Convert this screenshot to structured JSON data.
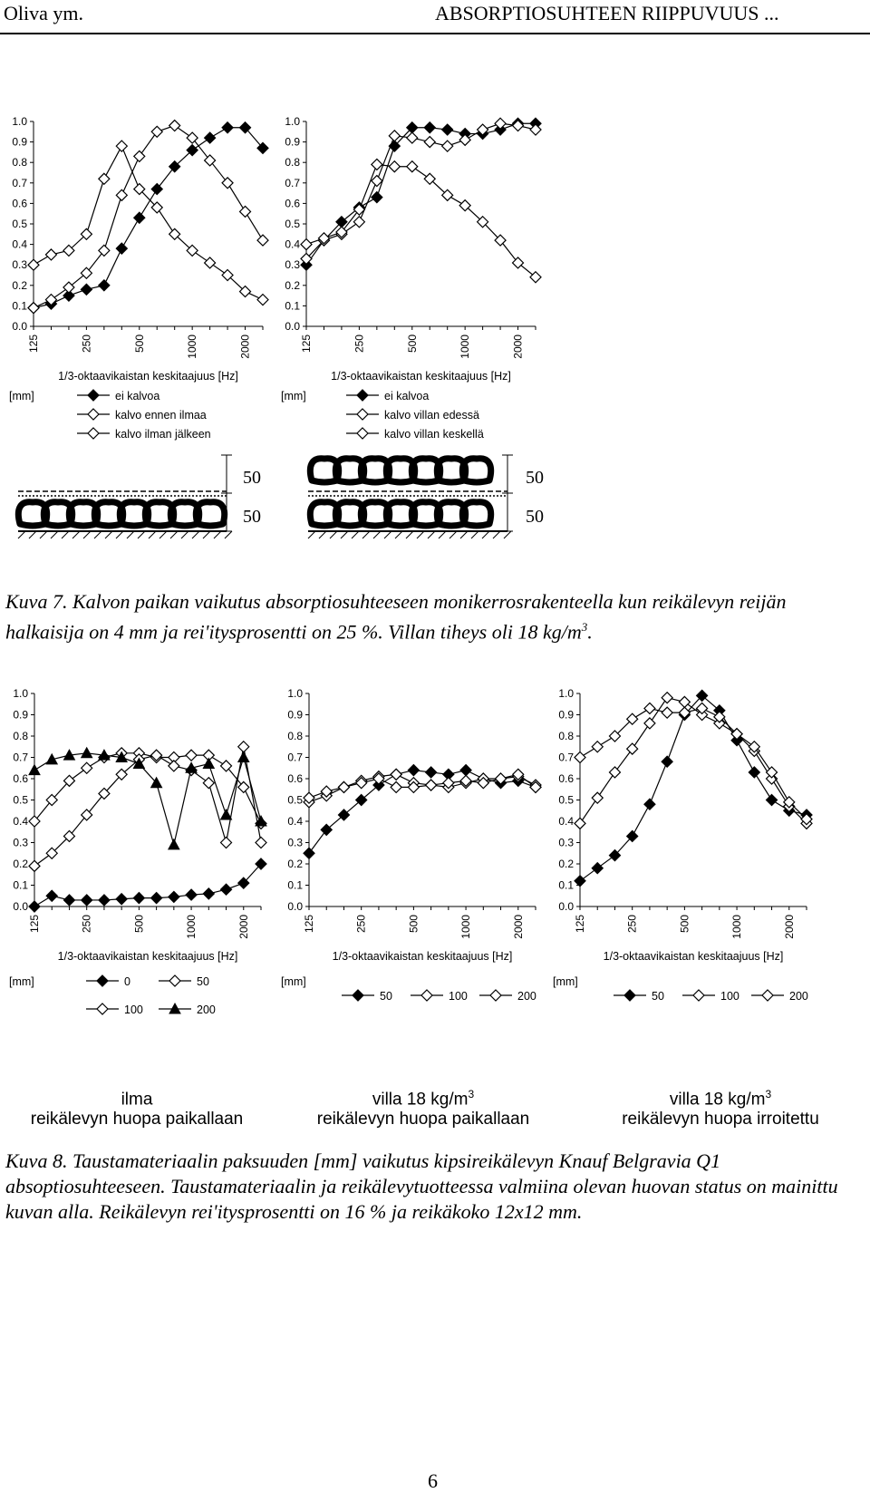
{
  "header": {
    "left": "Oliva ym.",
    "right": "ABSORPTIOSUHTEEN RIIPPUVUUS ..."
  },
  "caption7": {
    "text": "Kuva 7. Kalvon paikan vaikutus absorptiosuhteeseen monikerrosrakenteella kun reikälevyn reijän halkaisija on 4 mm ja rei'itysprosentti on 25 %. Villan tiheys oli 18 kg/m",
    "sup": "3",
    "end": "."
  },
  "caption8": {
    "text": "Kuva 8. Taustamateriaalin paksuuden [mm] vaikutus kipsireikälevyn Knauf Belgravia Q1 absoptiosuhteeseen. Taustamateriaalin ja reikälevytuotteessa valmiina olevan huovan status on mainittu kuvan alla. Reikälevyn rei'itysprosentti on 16 % ja reikäkoko 12x12 mm."
  },
  "page_number": "6",
  "diagrams": {
    "left": {
      "dim_top": "50",
      "dim_bottom": "50"
    },
    "right": {
      "dim_top": "50",
      "dim_bottom": "50"
    }
  },
  "sublabels": [
    {
      "line1": "ilma",
      "line1_sup": "",
      "line2": "reikälevyn huopa paikallaan"
    },
    {
      "line1": "villa 18 kg/m",
      "line1_sup": "3",
      "line2": "reikälevyn huopa paikallaan"
    },
    {
      "line1": "villa 18 kg/m",
      "line1_sup": "3",
      "line2": "reikälevyn huopa irroitettu"
    }
  ],
  "chart_data": [
    {
      "type": "line",
      "categories": [
        "125",
        "160",
        "200",
        "250",
        "315",
        "400",
        "500",
        "630",
        "800",
        "1000",
        "1250",
        "1600",
        "2000",
        "2500"
      ],
      "tick_labels": [
        "125",
        "250",
        "500",
        "1000",
        "2000"
      ],
      "xlabel": "1/3-oktaavikaistan keskitaajuus [Hz]",
      "ylim": [
        0,
        1.0
      ],
      "yticks": [
        "1.0",
        "0.9",
        "0.8",
        "0.7",
        "0.6",
        "0.5",
        "0.4",
        "0.3",
        "0.2",
        "0.1",
        "0.0"
      ],
      "legend_title": "[mm]",
      "legend_layout": "vertical",
      "series": [
        {
          "name": "ei kalvoa",
          "marker": "filled-diamond",
          "values": [
            0.09,
            0.11,
            0.15,
            0.18,
            0.2,
            0.38,
            0.53,
            0.67,
            0.78,
            0.86,
            0.92,
            0.97,
            0.97,
            0.87
          ]
        },
        {
          "name": "kalvo ennen ilmaa",
          "marker": "open-diamond",
          "values": [
            0.3,
            0.35,
            0.37,
            0.45,
            0.72,
            0.88,
            0.67,
            0.58,
            0.45,
            0.37,
            0.31,
            0.25,
            0.17,
            0.13
          ]
        },
        {
          "name": "kalvo ilman jälkeen",
          "marker": "open-diamond",
          "values": [
            0.09,
            0.13,
            0.19,
            0.26,
            0.37,
            0.64,
            0.83,
            0.95,
            0.98,
            0.92,
            0.81,
            0.7,
            0.56,
            0.42
          ]
        }
      ]
    },
    {
      "type": "line",
      "categories": [
        "125",
        "160",
        "200",
        "250",
        "315",
        "400",
        "500",
        "630",
        "800",
        "1000",
        "1250",
        "1600",
        "2000",
        "2500"
      ],
      "tick_labels": [
        "125",
        "250",
        "500",
        "1000",
        "2000"
      ],
      "xlabel": "1/3-oktaavikaistan keskitaajuus [Hz]",
      "ylim": [
        0,
        1.0
      ],
      "yticks": [
        "1.0",
        "0.9",
        "0.8",
        "0.7",
        "0.6",
        "0.5",
        "0.4",
        "0.3",
        "0.2",
        "0.1",
        "0.0"
      ],
      "legend_title": "[mm]",
      "legend_layout": "vertical",
      "series": [
        {
          "name": "ei kalvoa",
          "marker": "filled-diamond",
          "values": [
            0.3,
            0.42,
            0.51,
            0.58,
            0.63,
            0.88,
            0.97,
            0.97,
            0.96,
            0.94,
            0.94,
            0.96,
            0.99,
            0.99
          ]
        },
        {
          "name": "kalvo villan edessä",
          "marker": "open-diamond",
          "values": [
            0.33,
            0.42,
            0.45,
            0.51,
            0.71,
            0.93,
            0.92,
            0.9,
            0.88,
            0.91,
            0.96,
            0.99,
            0.98,
            0.96
          ]
        },
        {
          "name": "kalvo villan keskellä",
          "marker": "open-diamond",
          "values": [
            0.4,
            0.43,
            0.46,
            0.57,
            0.79,
            0.78,
            0.78,
            0.72,
            0.64,
            0.59,
            0.51,
            0.42,
            0.31,
            0.24
          ]
        }
      ]
    },
    {
      "type": "line",
      "categories": [
        "125",
        "160",
        "200",
        "250",
        "315",
        "400",
        "500",
        "630",
        "800",
        "1000",
        "1250",
        "1600",
        "2000",
        "2500"
      ],
      "tick_labels": [
        "125",
        "250",
        "500",
        "1000",
        "2000"
      ],
      "xlabel": "1/3-oktaavikaistan keskitaajuus [Hz]",
      "ylim": [
        0,
        1.0
      ],
      "yticks": [
        "1.0",
        "0.9",
        "0.8",
        "0.7",
        "0.6",
        "0.5",
        "0.4",
        "0.3",
        "0.2",
        "0.1",
        "0.0"
      ],
      "legend_title": "[mm]",
      "legend_layout": "grid",
      "series": [
        {
          "name": "0",
          "marker": "filled-diamond",
          "values": [
            0,
            0.05,
            0.03,
            0.03,
            0.03,
            0.035,
            0.04,
            0.04,
            0.045,
            0.055,
            0.06,
            0.08,
            0.11,
            0.2
          ]
        },
        {
          "name": "50",
          "marker": "open-diamond",
          "values": [
            0.4,
            0.5,
            0.59,
            0.65,
            0.7,
            0.72,
            0.72,
            0.7,
            0.7,
            0.71,
            0.71,
            0.66,
            0.56,
            0.39
          ]
        },
        {
          "name": "100",
          "marker": "open-diamond",
          "values": [
            0.19,
            0.25,
            0.33,
            0.43,
            0.53,
            0.62,
            0.69,
            0.71,
            0.66,
            0.64,
            0.58,
            0.3,
            0.75,
            0.3
          ]
        },
        {
          "name": "200",
          "marker": "filled-triangle",
          "values": [
            0.64,
            0.69,
            0.71,
            0.72,
            0.71,
            0.7,
            0.67,
            0.58,
            0.29,
            0.65,
            0.67,
            0.43,
            0.7,
            0.4
          ]
        }
      ]
    },
    {
      "type": "line",
      "categories": [
        "125",
        "160",
        "200",
        "250",
        "315",
        "400",
        "500",
        "630",
        "800",
        "1000",
        "1250",
        "1600",
        "2000",
        "2500"
      ],
      "tick_labels": [
        "125",
        "250",
        "500",
        "1000",
        "2000"
      ],
      "xlabel": "1/3-oktaavikaistan keskitaajuus [Hz]",
      "ylim": [
        0,
        1.0
      ],
      "yticks": [
        "1.0",
        "0.9",
        "0.8",
        "0.7",
        "0.6",
        "0.5",
        "0.4",
        "0.3",
        "0.2",
        "0.1",
        "0.0"
      ],
      "legend_title": "[mm]",
      "legend_layout": "row",
      "series": [
        {
          "name": "50",
          "marker": "filled-diamond",
          "values": [
            0.25,
            0.36,
            0.43,
            0.5,
            0.57,
            0.62,
            0.64,
            0.63,
            0.62,
            0.64,
            0.6,
            0.58,
            0.59,
            0.56
          ]
        },
        {
          "name": "100",
          "marker": "open-diamond",
          "values": [
            0.49,
            0.52,
            0.56,
            0.59,
            0.61,
            0.62,
            0.58,
            0.57,
            0.56,
            0.58,
            0.6,
            0.6,
            0.61,
            0.57
          ]
        },
        {
          "name": "200",
          "marker": "open-diamond",
          "values": [
            0.51,
            0.54,
            0.56,
            0.58,
            0.6,
            0.56,
            0.56,
            0.57,
            0.58,
            0.59,
            0.58,
            0.6,
            0.62,
            0.56
          ]
        }
      ]
    },
    {
      "type": "line",
      "categories": [
        "125",
        "160",
        "200",
        "250",
        "315",
        "400",
        "500",
        "630",
        "800",
        "1000",
        "1250",
        "1600",
        "2000",
        "2500"
      ],
      "tick_labels": [
        "125",
        "250",
        "500",
        "1000",
        "2000"
      ],
      "xlabel": "1/3-oktaavikaistan keskitaajuus [Hz]",
      "ylim": [
        0,
        1.0
      ],
      "yticks": [
        "1.0",
        "0.9",
        "0.8",
        "0.7",
        "0.6",
        "0.5",
        "0.4",
        "0.3",
        "0.2",
        "0.1",
        "0.0"
      ],
      "legend_title": "[mm]",
      "legend_layout": "row",
      "series": [
        {
          "name": "50",
          "marker": "filled-diamond",
          "values": [
            0.12,
            0.18,
            0.24,
            0.33,
            0.48,
            0.68,
            0.9,
            0.99,
            0.92,
            0.78,
            0.63,
            0.5,
            0.45,
            0.43
          ]
        },
        {
          "name": "100",
          "marker": "open-diamond",
          "values": [
            0.39,
            0.51,
            0.63,
            0.74,
            0.86,
            0.98,
            0.96,
            0.9,
            0.86,
            0.81,
            0.73,
            0.6,
            0.47,
            0.39
          ]
        },
        {
          "name": "200",
          "marker": "open-diamond",
          "values": [
            0.7,
            0.75,
            0.8,
            0.88,
            0.93,
            0.91,
            0.91,
            0.93,
            0.89,
            0.81,
            0.75,
            0.63,
            0.49,
            0.41
          ]
        }
      ]
    }
  ]
}
